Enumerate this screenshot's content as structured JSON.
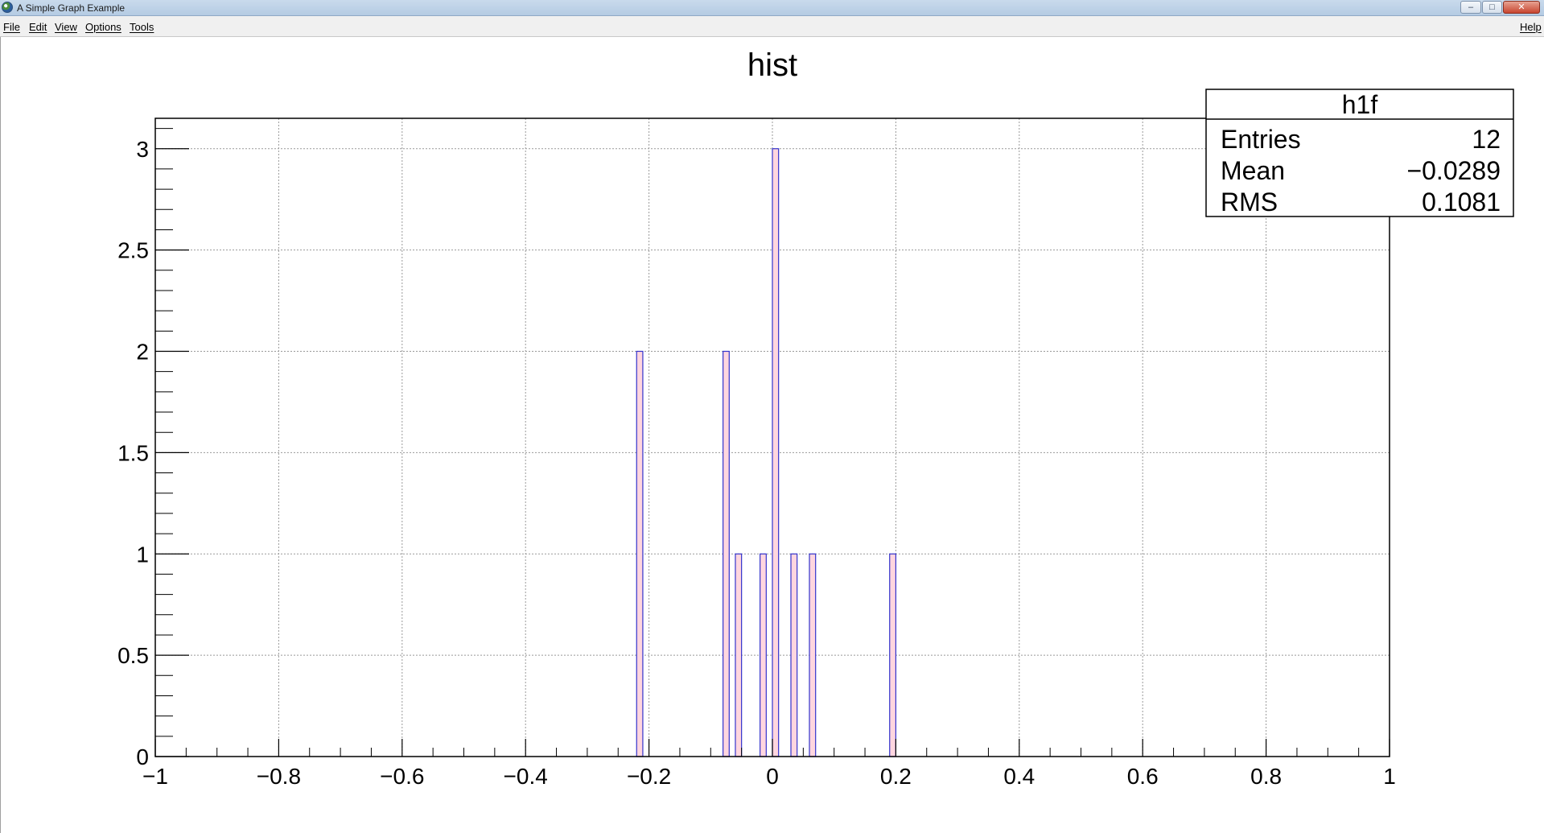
{
  "window": {
    "title": "A Simple Graph Example",
    "minimize_glyph": "–",
    "maximize_glyph": "□",
    "close_glyph": "✕"
  },
  "menu": {
    "items": [
      "File",
      "Edit",
      "View",
      "Options",
      "Tools"
    ],
    "help": "Help"
  },
  "stats": {
    "name": "h1f",
    "rows": [
      {
        "label": "Entries",
        "value": "12"
      },
      {
        "label": "Mean",
        "value": "−0.0289"
      },
      {
        "label": "RMS",
        "value": "0.1081"
      }
    ]
  },
  "colors": {
    "bar_fill": "#ffd6df",
    "bar_stroke": "#3333cc",
    "grid": "#999999"
  },
  "chart_data": {
    "type": "bar",
    "title": "hist",
    "xlabel": "",
    "ylabel": "",
    "xlim": [
      -1,
      1
    ],
    "ylim": [
      0,
      3.15
    ],
    "grid": true,
    "bin_width": 0.01,
    "x_ticks": [
      {
        "value": -1,
        "label": "−1"
      },
      {
        "value": -0.8,
        "label": "−0.8"
      },
      {
        "value": -0.6,
        "label": "−0.6"
      },
      {
        "value": -0.4,
        "label": "−0.4"
      },
      {
        "value": -0.2,
        "label": "−0.2"
      },
      {
        "value": 0,
        "label": "0"
      },
      {
        "value": 0.2,
        "label": "0.2"
      },
      {
        "value": 0.4,
        "label": "0.4"
      },
      {
        "value": 0.6,
        "label": "0.6"
      },
      {
        "value": 0.8,
        "label": "0.8"
      },
      {
        "value": 1,
        "label": "1"
      }
    ],
    "y_ticks": [
      {
        "value": 0,
        "label": "0"
      },
      {
        "value": 0.5,
        "label": "0.5"
      },
      {
        "value": 1,
        "label": "1"
      },
      {
        "value": 1.5,
        "label": "1.5"
      },
      {
        "value": 2,
        "label": "2"
      },
      {
        "value": 2.5,
        "label": "2.5"
      },
      {
        "value": 3,
        "label": "3"
      }
    ],
    "bins": [
      {
        "x": -0.215,
        "count": 2
      },
      {
        "x": -0.075,
        "count": 2
      },
      {
        "x": -0.055,
        "count": 1
      },
      {
        "x": -0.015,
        "count": 1
      },
      {
        "x": 0.005,
        "count": 3
      },
      {
        "x": 0.035,
        "count": 1
      },
      {
        "x": 0.065,
        "count": 1
      },
      {
        "x": 0.195,
        "count": 1
      }
    ]
  }
}
